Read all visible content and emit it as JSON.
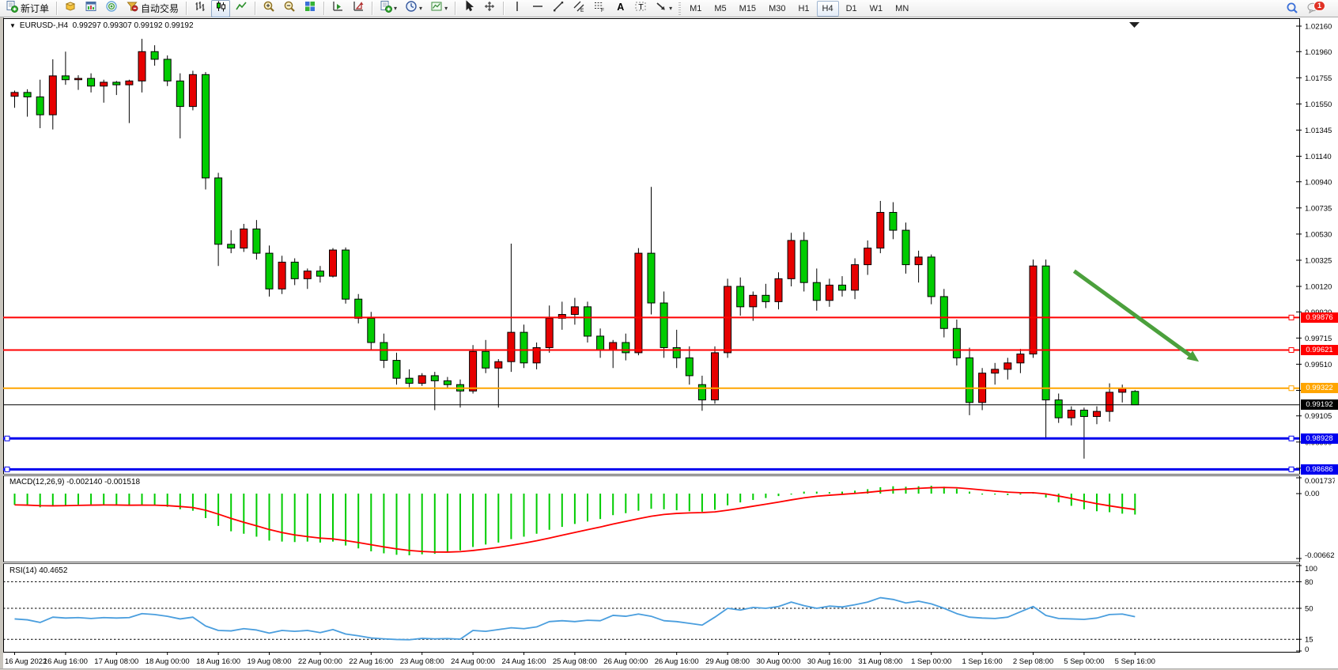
{
  "toolbar": {
    "new_order_label": "新订单",
    "auto_trading_label": "自动交易",
    "timeframes": [
      "M1",
      "M5",
      "M15",
      "M30",
      "H1",
      "H4",
      "D1",
      "W1",
      "MN"
    ],
    "active_timeframe": "H4",
    "chat_badge": "1",
    "groups": [
      {
        "items": [
          {
            "icon": "new-order",
            "label": "新订单"
          }
        ]
      },
      {
        "items": [
          {
            "icon": "market-watch"
          },
          {
            "icon": "chart-window"
          },
          {
            "icon": "signal"
          },
          {
            "icon": "auto-trading",
            "label": "自动交易"
          }
        ]
      },
      {
        "items": [
          {
            "icon": "bar-chart"
          },
          {
            "icon": "candlestick-chart",
            "pressed": true
          },
          {
            "icon": "line-chart"
          }
        ]
      },
      {
        "items": [
          {
            "icon": "zoom-in"
          },
          {
            "icon": "zoom-out"
          },
          {
            "icon": "tile-windows"
          }
        ]
      },
      {
        "items": [
          {
            "icon": "arrange-left"
          },
          {
            "icon": "arrange-right"
          }
        ]
      },
      {
        "items": [
          {
            "icon": "new-chart",
            "dropdown": true
          },
          {
            "icon": "periods",
            "dropdown": true
          },
          {
            "icon": "templates",
            "dropdown": true
          }
        ]
      },
      {
        "items": [
          {
            "icon": "cursor"
          },
          {
            "icon": "crosshair"
          }
        ]
      },
      {
        "items": [
          {
            "icon": "vertical-line"
          },
          {
            "icon": "horizontal-line"
          },
          {
            "icon": "trendline"
          },
          {
            "icon": "channel"
          },
          {
            "icon": "fibonacci"
          },
          {
            "icon": "text"
          },
          {
            "icon": "text-label"
          },
          {
            "icon": "shapes",
            "dropdown": true
          }
        ]
      }
    ]
  },
  "chart": {
    "title": "EURUSD-,H4",
    "ohlc": "0.99297 0.99307 0.99192 0.99192"
  },
  "chart_data": {
    "type": "candlestick",
    "symbol": "EURUSD-",
    "timeframe": "H4",
    "title": "EURUSD-,H4  0.99297 0.99307 0.99192 0.99192",
    "grid": "off",
    "legend_position": "none",
    "y_range": [
      0.98651,
      1.02222
    ],
    "y_axis_ticks": [
      "1.02160",
      "1.01960",
      "1.01755",
      "1.01550",
      "1.01345",
      "1.01140",
      "1.00940",
      "1.00735",
      "1.00530",
      "1.00325",
      "1.00120",
      "0.99920",
      "0.99715",
      "0.99510",
      "0.99305",
      "0.99105",
      "0.98900",
      "0.98695"
    ],
    "x_time_labels": [
      "16 Aug 2022",
      "16 Aug 16:00",
      "17 Aug 08:00",
      "18 Aug 00:00",
      "18 Aug 16:00",
      "19 Aug 08:00",
      "22 Aug 00:00",
      "22 Aug 16:00",
      "23 Aug 08:00",
      "24 Aug 00:00",
      "24 Aug 16:00",
      "25 Aug 08:00",
      "26 Aug 00:00",
      "26 Aug 16:00",
      "29 Aug 08:00",
      "30 Aug 00:00",
      "30 Aug 16:00",
      "31 Aug 08:00",
      "1 Sep 00:00",
      "1 Sep 16:00",
      "2 Sep 08:00",
      "5 Sep 00:00",
      "5 Sep 16:00"
    ],
    "candles_per_label": 4,
    "colors": {
      "up_candle": "#e60000",
      "down_candle": "#00cc00",
      "candle_border": "#000000",
      "wick": "#000000"
    },
    "candles": [
      [
        1.0161,
        1.01655,
        1.0152,
        1.0164
      ],
      [
        1.0164,
        1.01665,
        1.0145,
        1.01605
      ],
      [
        1.01605,
        1.0174,
        1.0136,
        1.01465
      ],
      [
        1.01465,
        1.019,
        1.0135,
        1.0177
      ],
      [
        1.0177,
        1.0196,
        1.017,
        1.0174
      ],
      [
        1.0174,
        1.01775,
        1.0166,
        1.0175
      ],
      [
        1.0175,
        1.0179,
        1.0164,
        1.0169
      ],
      [
        1.0169,
        1.0174,
        1.0156,
        1.0172
      ],
      [
        1.0172,
        1.0173,
        1.0162,
        1.017
      ],
      [
        1.017,
        1.0174,
        1.014,
        1.0173
      ],
      [
        1.0173,
        1.0206,
        1.0164,
        1.0196
      ],
      [
        1.0196,
        1.0201,
        1.0185,
        1.019
      ],
      [
        1.019,
        1.0193,
        1.0169,
        1.0173
      ],
      [
        1.0173,
        1.0179,
        1.0128,
        1.0153
      ],
      [
        1.0153,
        1.0181,
        1.015,
        1.0178
      ],
      [
        1.0178,
        1.018,
        1.0088,
        1.0097
      ],
      [
        1.0097,
        1.0101,
        1.0028,
        1.0045
      ],
      [
        1.0045,
        1.0056,
        1.0038,
        1.0042
      ],
      [
        1.0042,
        1.0061,
        1.0039,
        1.0057
      ],
      [
        1.0057,
        1.0064,
        1.0033,
        1.0038
      ],
      [
        1.0038,
        1.0044,
        1.0004,
        1.001
      ],
      [
        1.001,
        1.0036,
        1.0006,
        1.0031
      ],
      [
        1.0031,
        1.0034,
        1.0013,
        1.0018
      ],
      [
        1.0018,
        1.0026,
        1.001,
        1.0024
      ],
      [
        1.0024,
        1.0028,
        1.0015,
        1.002
      ],
      [
        1.002,
        1.0042,
        1.0019,
        1.00405
      ],
      [
        1.00405,
        1.00425,
        0.99985,
        1.0002
      ],
      [
        1.0002,
        1.0006,
        0.9983,
        0.9987
      ],
      [
        0.9987,
        0.9992,
        0.9962,
        0.9968
      ],
      [
        0.9968,
        0.9975,
        0.9948,
        0.9954
      ],
      [
        0.9954,
        0.996,
        0.9935,
        0.994
      ],
      [
        0.994,
        0.9947,
        0.9933,
        0.9936
      ],
      [
        0.9936,
        0.9944,
        0.9934,
        0.9942
      ],
      [
        0.9942,
        0.9945,
        0.9915,
        0.9938
      ],
      [
        0.9938,
        0.9941,
        0.9932,
        0.9935
      ],
      [
        0.9935,
        0.9939,
        0.9917,
        0.993
      ],
      [
        0.993,
        0.9966,
        0.9928,
        0.9961
      ],
      [
        0.9961,
        0.997,
        0.9944,
        0.9948
      ],
      [
        0.9948,
        0.9955,
        0.9917,
        0.9953
      ],
      [
        0.9953,
        1.00455,
        0.9945,
        0.9976
      ],
      [
        0.9976,
        0.9982,
        0.9948,
        0.9952
      ],
      [
        0.9952,
        0.9968,
        0.9947,
        0.9964
      ],
      [
        0.9964,
        0.9997,
        0.996,
        0.9987
      ],
      [
        0.9987,
        1.0,
        0.9978,
        0.999
      ],
      [
        0.999,
        1.0003,
        0.9982,
        0.9996
      ],
      [
        0.9996,
        1.0,
        0.9968,
        0.9973
      ],
      [
        0.9973,
        0.9979,
        0.9956,
        0.9962
      ],
      [
        0.9962,
        0.997,
        0.9948,
        0.9968
      ],
      [
        0.9968,
        0.9975,
        0.9954,
        0.996
      ],
      [
        0.996,
        1.0042,
        0.9958,
        1.0038
      ],
      [
        1.0038,
        1.009,
        0.999,
        0.9999
      ],
      [
        0.9999,
        1.0008,
        0.9956,
        0.9964
      ],
      [
        0.9964,
        0.9978,
        0.9948,
        0.9956
      ],
      [
        0.9956,
        0.9965,
        0.9935,
        0.9942
      ],
      [
        0.9935,
        0.9942,
        0.99145,
        0.9923
      ],
      [
        0.9923,
        0.9965,
        0.992,
        0.996
      ],
      [
        0.996,
        1.0018,
        0.9956,
        1.0012
      ],
      [
        1.0012,
        1.0019,
        0.9989,
        0.9996
      ],
      [
        0.9996,
        1.0008,
        0.9985,
        1.0005
      ],
      [
        1.0005,
        1.0014,
        0.9995,
        1.0
      ],
      [
        1.0,
        1.0023,
        0.9994,
        1.0018
      ],
      [
        1.0018,
        1.0054,
        1.0012,
        1.0048
      ],
      [
        1.0048,
        1.00545,
        1.0008,
        1.0015
      ],
      [
        1.0015,
        1.0026,
        0.9993,
        1.0001
      ],
      [
        1.0001,
        1.0018,
        0.9996,
        1.0013
      ],
      [
        1.0013,
        1.002,
        1.0004,
        1.0009
      ],
      [
        1.0009,
        1.0034,
        1.0002,
        1.0029
      ],
      [
        1.0029,
        1.0048,
        1.0021,
        1.0042
      ],
      [
        1.0042,
        1.0079,
        1.0038,
        1.007
      ],
      [
        1.007,
        1.0078,
        1.0049,
        1.0056
      ],
      [
        1.0056,
        1.0062,
        1.0022,
        1.0029
      ],
      [
        1.0029,
        1.004,
        1.0015,
        1.0035
      ],
      [
        1.0035,
        1.0037,
        0.9998,
        1.0004
      ],
      [
        1.0004,
        1.001,
        0.9972,
        0.9979
      ],
      [
        0.9979,
        0.9986,
        0.995,
        0.9956
      ],
      [
        0.9956,
        0.9964,
        0.9911,
        0.9921
      ],
      [
        0.9921,
        0.9948,
        0.9915,
        0.9944
      ],
      [
        0.9944,
        0.9952,
        0.9935,
        0.9947
      ],
      [
        0.9947,
        0.9956,
        0.9939,
        0.9952
      ],
      [
        0.9952,
        0.9963,
        0.9944,
        0.9959
      ],
      [
        0.9959,
        1.0033,
        0.9956,
        1.0028
      ],
      [
        1.0028,
        1.0033,
        0.9892,
        0.9923
      ],
      [
        0.9923,
        0.9928,
        0.9905,
        0.9909
      ],
      [
        0.9909,
        0.9918,
        0.9903,
        0.9915
      ],
      [
        0.9915,
        0.9917,
        0.9877,
        0.991
      ],
      [
        0.991,
        0.9918,
        0.9904,
        0.9914
      ],
      [
        0.9914,
        0.9936,
        0.9906,
        0.9929
      ],
      [
        0.9929,
        0.9935,
        0.9921,
        0.9932
      ],
      [
        0.99297,
        0.99307,
        0.99192,
        0.99192
      ]
    ],
    "current_price": "0.99192",
    "horizontal_lines": [
      {
        "price": 0.99876,
        "label": "0.99876",
        "color": "#ff0000",
        "width": 2
      },
      {
        "price": 0.99621,
        "label": "0.99621",
        "color": "#ff0000",
        "width": 2
      },
      {
        "price": 0.99322,
        "label": "0.99322",
        "color": "#ffa500",
        "width": 2
      },
      {
        "price": 0.99192,
        "label": "0.99192",
        "color": "#000000",
        "width": 1
      },
      {
        "price": 0.98928,
        "label": "0.98928",
        "color": "#0000ee",
        "width": 3
      },
      {
        "price": 0.98686,
        "label": "0.98686",
        "color": "#0000ee",
        "width": 3
      }
    ],
    "trend_arrow": {
      "from_index": 83.5,
      "from_price": 1.0024,
      "to_index": 93.3,
      "to_price": 0.9953,
      "color": "#4ba03c"
    },
    "macd": {
      "label": "MACD(12,26,9)",
      "value_main": "-0.002140",
      "value_signal": "-0.001518",
      "axis_ticks": [
        "0.001737",
        "0.00",
        "-0.006628"
      ],
      "range": [
        -0.00695,
        0.00178
      ],
      "colors": {
        "histogram": "#00cc00",
        "signal": "#ff0000"
      },
      "signal_ema_alpha": 0.25,
      "histogram": [
        -0.00115,
        -0.00125,
        -0.0014,
        -0.0013,
        -0.00118,
        -0.00112,
        -0.0011,
        -0.00112,
        -0.00118,
        -0.00125,
        -0.00115,
        -0.0012,
        -0.00135,
        -0.0016,
        -0.00175,
        -0.0025,
        -0.0033,
        -0.00385,
        -0.0041,
        -0.0044,
        -0.0048,
        -0.0049,
        -0.00495,
        -0.0049,
        -0.005,
        -0.0049,
        -0.0053,
        -0.0056,
        -0.0059,
        -0.0061,
        -0.00625,
        -0.0063,
        -0.0062,
        -0.00615,
        -0.006,
        -0.0058,
        -0.00545,
        -0.0052,
        -0.005,
        -0.00465,
        -0.0044,
        -0.0041,
        -0.0037,
        -0.0034,
        -0.0031,
        -0.00285,
        -0.0026,
        -0.0022,
        -0.002,
        -0.00175,
        -0.00155,
        -0.0016,
        -0.0017,
        -0.0018,
        -0.00185,
        -0.00165,
        -0.0012,
        -0.0009,
        -0.00065,
        -0.00045,
        -0.00025,
        5e-05,
        0.0002,
        0.0002,
        0.00015,
        0.0002,
        0.0003,
        0.00045,
        0.00065,
        0.00075,
        0.0007,
        0.00075,
        0.0008,
        0.0007,
        0.0005,
        0.0002,
        0.0,
        -0.0001,
        -0.00015,
        -0.0001,
        0.0001,
        -0.0004,
        -0.0009,
        -0.00125,
        -0.0016,
        -0.0018,
        -0.0019,
        -0.00205,
        -0.00214
      ]
    },
    "rsi": {
      "label": "RSI(14)",
      "value": "40.4652",
      "levels": [
        80,
        50,
        15
      ],
      "axis_ticks": [
        "100",
        "80",
        "50",
        "15",
        "0"
      ],
      "range": [
        0,
        100
      ],
      "color": "#4a9ede",
      "values": [
        38,
        37,
        34,
        40,
        39,
        39.5,
        38.5,
        39.5,
        39,
        39.5,
        44,
        43,
        41,
        38,
        40,
        30,
        25,
        24.5,
        27,
        25.5,
        22,
        25,
        24,
        25,
        22.5,
        26,
        21,
        19,
        16.5,
        15.5,
        14.8,
        14.5,
        16,
        15.5,
        15.8,
        15.2,
        25,
        24,
        26,
        28,
        27,
        29,
        35,
        36,
        35,
        36.5,
        36,
        42,
        41,
        43.5,
        41,
        36,
        35,
        33,
        31,
        40,
        50,
        48,
        51,
        50,
        52,
        57,
        53,
        50,
        52.5,
        51.5,
        54,
        57,
        62,
        60,
        56,
        58,
        55,
        50,
        44,
        40,
        39,
        38.5,
        40,
        46,
        52,
        42,
        38.5,
        38,
        37.5,
        39,
        43,
        43.5,
        40.47
      ]
    }
  }
}
